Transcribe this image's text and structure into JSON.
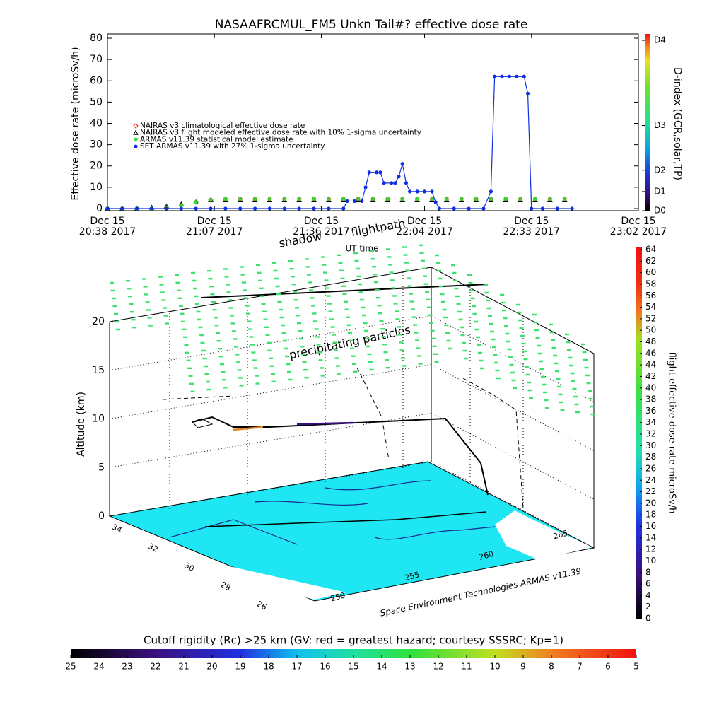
{
  "chart_data": [
    {
      "type": "line",
      "title": "NASAAFRCMUL_FM5 Unkn Tail#? effective dose rate",
      "y_label": "Effective dose rate (microSv/h)",
      "y2_label": "D-index (GCR,solar,TP)",
      "x_label": "UT time",
      "xlim": [
        "20:38",
        "23:02"
      ],
      "xticks": [
        {
          "value": "20:38",
          "label": [
            "Dec 15",
            "20:38 2017"
          ]
        },
        {
          "value": "21:07",
          "label": [
            "Dec 15",
            "21:07 2017"
          ]
        },
        {
          "value": "21:36",
          "label": [
            "Dec 15",
            "21:36 2017"
          ]
        },
        {
          "value": "22:04",
          "label": [
            "Dec 15",
            "22:04 2017"
          ]
        },
        {
          "value": "22:33",
          "label": [
            "Dec 15",
            "22:33 2017"
          ]
        },
        {
          "value": "23:02",
          "label": [
            "Dec 15",
            "23:02 2017"
          ]
        }
      ],
      "ylim": [
        -1,
        82
      ],
      "yticks": [
        0,
        10,
        20,
        30,
        40,
        50,
        60,
        70,
        80
      ],
      "y2lim": [
        -1,
        82
      ],
      "y2ticks": [
        {
          "value": -1,
          "label": "D0"
        },
        {
          "value": 8,
          "label": "D1"
        },
        {
          "value": 18,
          "label": "D2"
        },
        {
          "value": 39,
          "label": "D3"
        },
        {
          "value": 79,
          "label": "D4"
        }
      ],
      "series": [
        {
          "name": "NAIRAS v3 climatological effective dose rate",
          "color": "#e02020",
          "marker": "diamond",
          "x": [
            "20:38",
            "20:42",
            "20:46",
            "20:50",
            "20:54",
            "20:58",
            "21:02",
            "21:06",
            "21:10",
            "21:14",
            "21:18",
            "21:22",
            "21:26",
            "21:30",
            "21:34",
            "21:38",
            "21:42",
            "21:46",
            "21:50",
            "21:54",
            "21:58",
            "22:02",
            "22:06",
            "22:10",
            "22:14",
            "22:18",
            "22:22",
            "22:26",
            "22:30",
            "22:34",
            "22:38",
            "22:42"
          ],
          "values": [
            0,
            0,
            0,
            0,
            0.5,
            1.5,
            3,
            4,
            4.5,
            4.5,
            4.5,
            4.5,
            4.5,
            4.5,
            4.5,
            4.5,
            4.5,
            4.5,
            4.5,
            4.5,
            4.5,
            4.5,
            4.5,
            4.5,
            4.5,
            4.5,
            4.5,
            4.5,
            4.5,
            4.5,
            4.5,
            4.5
          ]
        },
        {
          "name": "NAIRAS v3 flight modeled effective dose rate with 10% 1-sigma uncertainty",
          "color": "#000000",
          "marker": "triangle",
          "x": [
            "20:38",
            "20:42",
            "20:46",
            "20:50",
            "20:54",
            "20:58",
            "21:02",
            "21:06",
            "21:10",
            "21:14",
            "21:18",
            "21:22",
            "21:26",
            "21:30",
            "21:34",
            "21:38",
            "21:42",
            "21:46",
            "21:50",
            "21:54",
            "21:58",
            "22:02",
            "22:06",
            "22:10",
            "22:14",
            "22:18",
            "22:22",
            "22:26",
            "22:30",
            "22:34",
            "22:38",
            "22:42"
          ],
          "values": [
            0,
            0,
            0,
            0.5,
            1,
            2,
            3,
            4,
            4,
            4,
            4,
            4,
            4,
            4,
            4,
            4,
            4,
            4,
            4,
            4,
            4,
            4,
            4,
            4,
            4,
            4,
            4,
            4,
            4,
            4,
            4,
            4
          ]
        },
        {
          "name": "ARMAS v11.39 statistical model estimate",
          "color": "#33dd33",
          "marker": "asterisk",
          "x": [
            "20:38",
            "20:42",
            "20:46",
            "20:50",
            "20:54",
            "20:58",
            "21:02",
            "21:06",
            "21:10",
            "21:14",
            "21:18",
            "21:22",
            "21:26",
            "21:30",
            "21:34",
            "21:38",
            "21:42",
            "21:46",
            "21:50",
            "21:54",
            "21:58",
            "22:02",
            "22:06",
            "22:10",
            "22:14",
            "22:18",
            "22:22",
            "22:26",
            "22:30",
            "22:34",
            "22:38",
            "22:42"
          ],
          "values": [
            0,
            0,
            0,
            0,
            0.5,
            1.5,
            3,
            4,
            4.5,
            4.5,
            4.5,
            4.5,
            4.5,
            4.5,
            4.5,
            4.5,
            4.5,
            4.5,
            4.5,
            4.5,
            4.5,
            4.5,
            4.5,
            4.5,
            4.5,
            4.5,
            4.5,
            4.5,
            4.5,
            4.5,
            4.5,
            4.5
          ]
        },
        {
          "name": "SET ARMAS v11.39 with 27% 1-sigma uncertainty",
          "color": "#1030e0",
          "marker": "circle",
          "line": true,
          "x": [
            "20:38",
            "20:42",
            "20:46",
            "20:50",
            "20:54",
            "20:58",
            "21:02",
            "21:06",
            "21:10",
            "21:14",
            "21:18",
            "21:22",
            "21:26",
            "21:30",
            "21:34",
            "21:38",
            "21:42",
            "21:43",
            "21:45",
            "21:47",
            "21:48",
            "21:49",
            "21:51",
            "21:52",
            "21:53",
            "21:55",
            "21:56",
            "21:57",
            "21:58",
            "21:59",
            "22:00",
            "22:02",
            "22:04",
            "22:06",
            "22:07",
            "22:08",
            "22:12",
            "22:16",
            "22:20",
            "22:22",
            "22:23",
            "22:25",
            "22:27",
            "22:29",
            "22:31",
            "22:32",
            "22:33",
            "22:36",
            "22:40",
            "22:44"
          ],
          "values": [
            0,
            0,
            0,
            0,
            0,
            0,
            0,
            0,
            0,
            0,
            0,
            0,
            0,
            0,
            0,
            0,
            0,
            3.5,
            3.5,
            3.5,
            10,
            17,
            17,
            17,
            12,
            12,
            12,
            15,
            21,
            12,
            8,
            8,
            8,
            8,
            3,
            0,
            0,
            0,
            0,
            8,
            62,
            62,
            62,
            62,
            62,
            54,
            0,
            0,
            0,
            0
          ]
        }
      ]
    },
    {
      "type": "surface3d",
      "z_label": "Altitude (km)",
      "zlim": [
        0,
        20
      ],
      "zticks": [
        0,
        5,
        10,
        15,
        20
      ],
      "annotations": [
        "shadow",
        "flightpath",
        "precipitating particles"
      ],
      "lat_ticks": [
        34,
        32,
        30,
        28,
        26
      ],
      "lon_ticks": [
        250,
        255,
        260,
        265
      ],
      "credit": "Space Environment Technologies ARMAS v11.39"
    }
  ],
  "colorbars": {
    "dose": {
      "label": "flight effective dose rate microSv/h",
      "lim": [
        0,
        64
      ],
      "ticks": [
        0,
        2,
        4,
        6,
        8,
        10,
        12,
        14,
        16,
        18,
        20,
        22,
        24,
        26,
        28,
        30,
        32,
        34,
        36,
        38,
        40,
        42,
        44,
        46,
        48,
        50,
        52,
        54,
        56,
        58,
        60,
        62,
        64
      ]
    },
    "rigidity": {
      "title": "Cutoff rigidity (Rc) >25 km (GV: red = greatest hazard; courtesy SSSRC; Kp=1)",
      "lim": [
        25,
        5
      ],
      "ticks": [
        25,
        24,
        23,
        22,
        21,
        20,
        19,
        18,
        17,
        16,
        15,
        14,
        13,
        12,
        11,
        10,
        9,
        8,
        7,
        6,
        5
      ]
    }
  }
}
